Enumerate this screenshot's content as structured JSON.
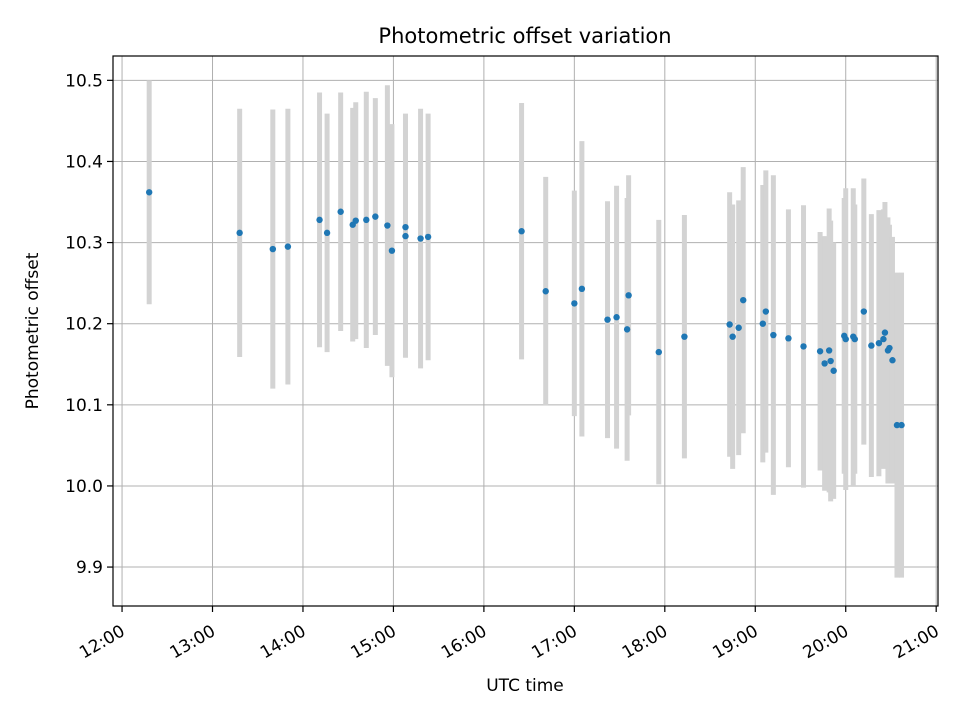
{
  "chart_data": {
    "type": "scatter",
    "title": "Photometric offset variation",
    "xlabel": "UTC time",
    "ylabel": "Photometric offset",
    "x_tick_labels": [
      "12:00",
      "13:00",
      "14:00",
      "15:00",
      "16:00",
      "17:00",
      "18:00",
      "19:00",
      "20:00",
      "21:00"
    ],
    "x_ticks_hours": [
      12,
      13,
      14,
      15,
      16,
      17,
      18,
      19,
      20,
      21
    ],
    "y_ticks": [
      9.9,
      10.0,
      10.1,
      10.2,
      10.3,
      10.4,
      10.5
    ],
    "y_tick_labels": [
      "9.9",
      "10.0",
      "10.1",
      "10.2",
      "10.3",
      "10.4",
      "10.5"
    ],
    "xlim_hours": [
      11.9,
      21.02
    ],
    "ylim": [
      9.852,
      10.53
    ],
    "grid": true,
    "colors": {
      "point": "#1f77b4",
      "errorbar": "#d3d3d3",
      "grid": "#b0b0b0"
    },
    "series": [
      {
        "x_utc": [
          "12:18",
          "13:18",
          "13:40",
          "13:50",
          "14:11",
          "14:16",
          "14:25",
          "14:33",
          "14:35",
          "14:42",
          "14:48",
          "14:56",
          "14:59",
          "15:08",
          "15:08",
          "15:18",
          "15:23",
          "16:25",
          "16:41",
          "17:00",
          "17:05",
          "17:22",
          "17:28",
          "17:35",
          "17:36",
          "17:56",
          "18:13",
          "18:43",
          "18:45",
          "18:49",
          "18:52",
          "19:05",
          "19:07",
          "19:12",
          "19:22",
          "19:32",
          "19:43",
          "19:46",
          "19:49",
          "19:50",
          "19:52",
          "19:59",
          "20:00",
          "20:05",
          "20:06",
          "20:12",
          "20:17",
          "20:22",
          "20:25",
          "20:26",
          "20:28",
          "20:29",
          "20:31",
          "20:34",
          "20:37"
        ],
        "y": [
          10.362,
          10.312,
          10.292,
          10.295,
          10.328,
          10.312,
          10.338,
          10.322,
          10.327,
          10.328,
          10.332,
          10.321,
          10.29,
          10.319,
          10.308,
          10.305,
          10.307,
          10.314,
          10.24,
          10.225,
          10.243,
          10.205,
          10.208,
          10.193,
          10.235,
          10.165,
          10.184,
          10.199,
          10.184,
          10.195,
          10.229,
          10.2,
          10.215,
          10.186,
          10.182,
          10.172,
          10.166,
          10.151,
          10.167,
          10.154,
          10.142,
          10.185,
          10.181,
          10.184,
          10.181,
          10.215,
          10.173,
          10.176,
          10.181,
          10.189,
          10.167,
          10.17,
          10.155,
          10.075,
          10.075
        ],
        "yerr": [
          0.138,
          0.153,
          0.172,
          0.17,
          0.157,
          0.147,
          0.147,
          0.144,
          0.146,
          0.158,
          0.146,
          0.173,
          0.156,
          0.14,
          0.15,
          0.16,
          0.152,
          0.158,
          0.141,
          0.139,
          0.182,
          0.146,
          0.162,
          0.162,
          0.148,
          0.163,
          0.15,
          0.163,
          0.163,
          0.157,
          0.164,
          0.171,
          0.174,
          0.197,
          0.159,
          0.174,
          0.147,
          0.157,
          0.175,
          0.173,
          0.158,
          0.17,
          0.186,
          0.183,
          0.166,
          0.164,
          0.162,
          0.164,
          0.16,
          0.161,
          0.164,
          0.152,
          0.152,
          0.188,
          0.188
        ]
      }
    ]
  }
}
